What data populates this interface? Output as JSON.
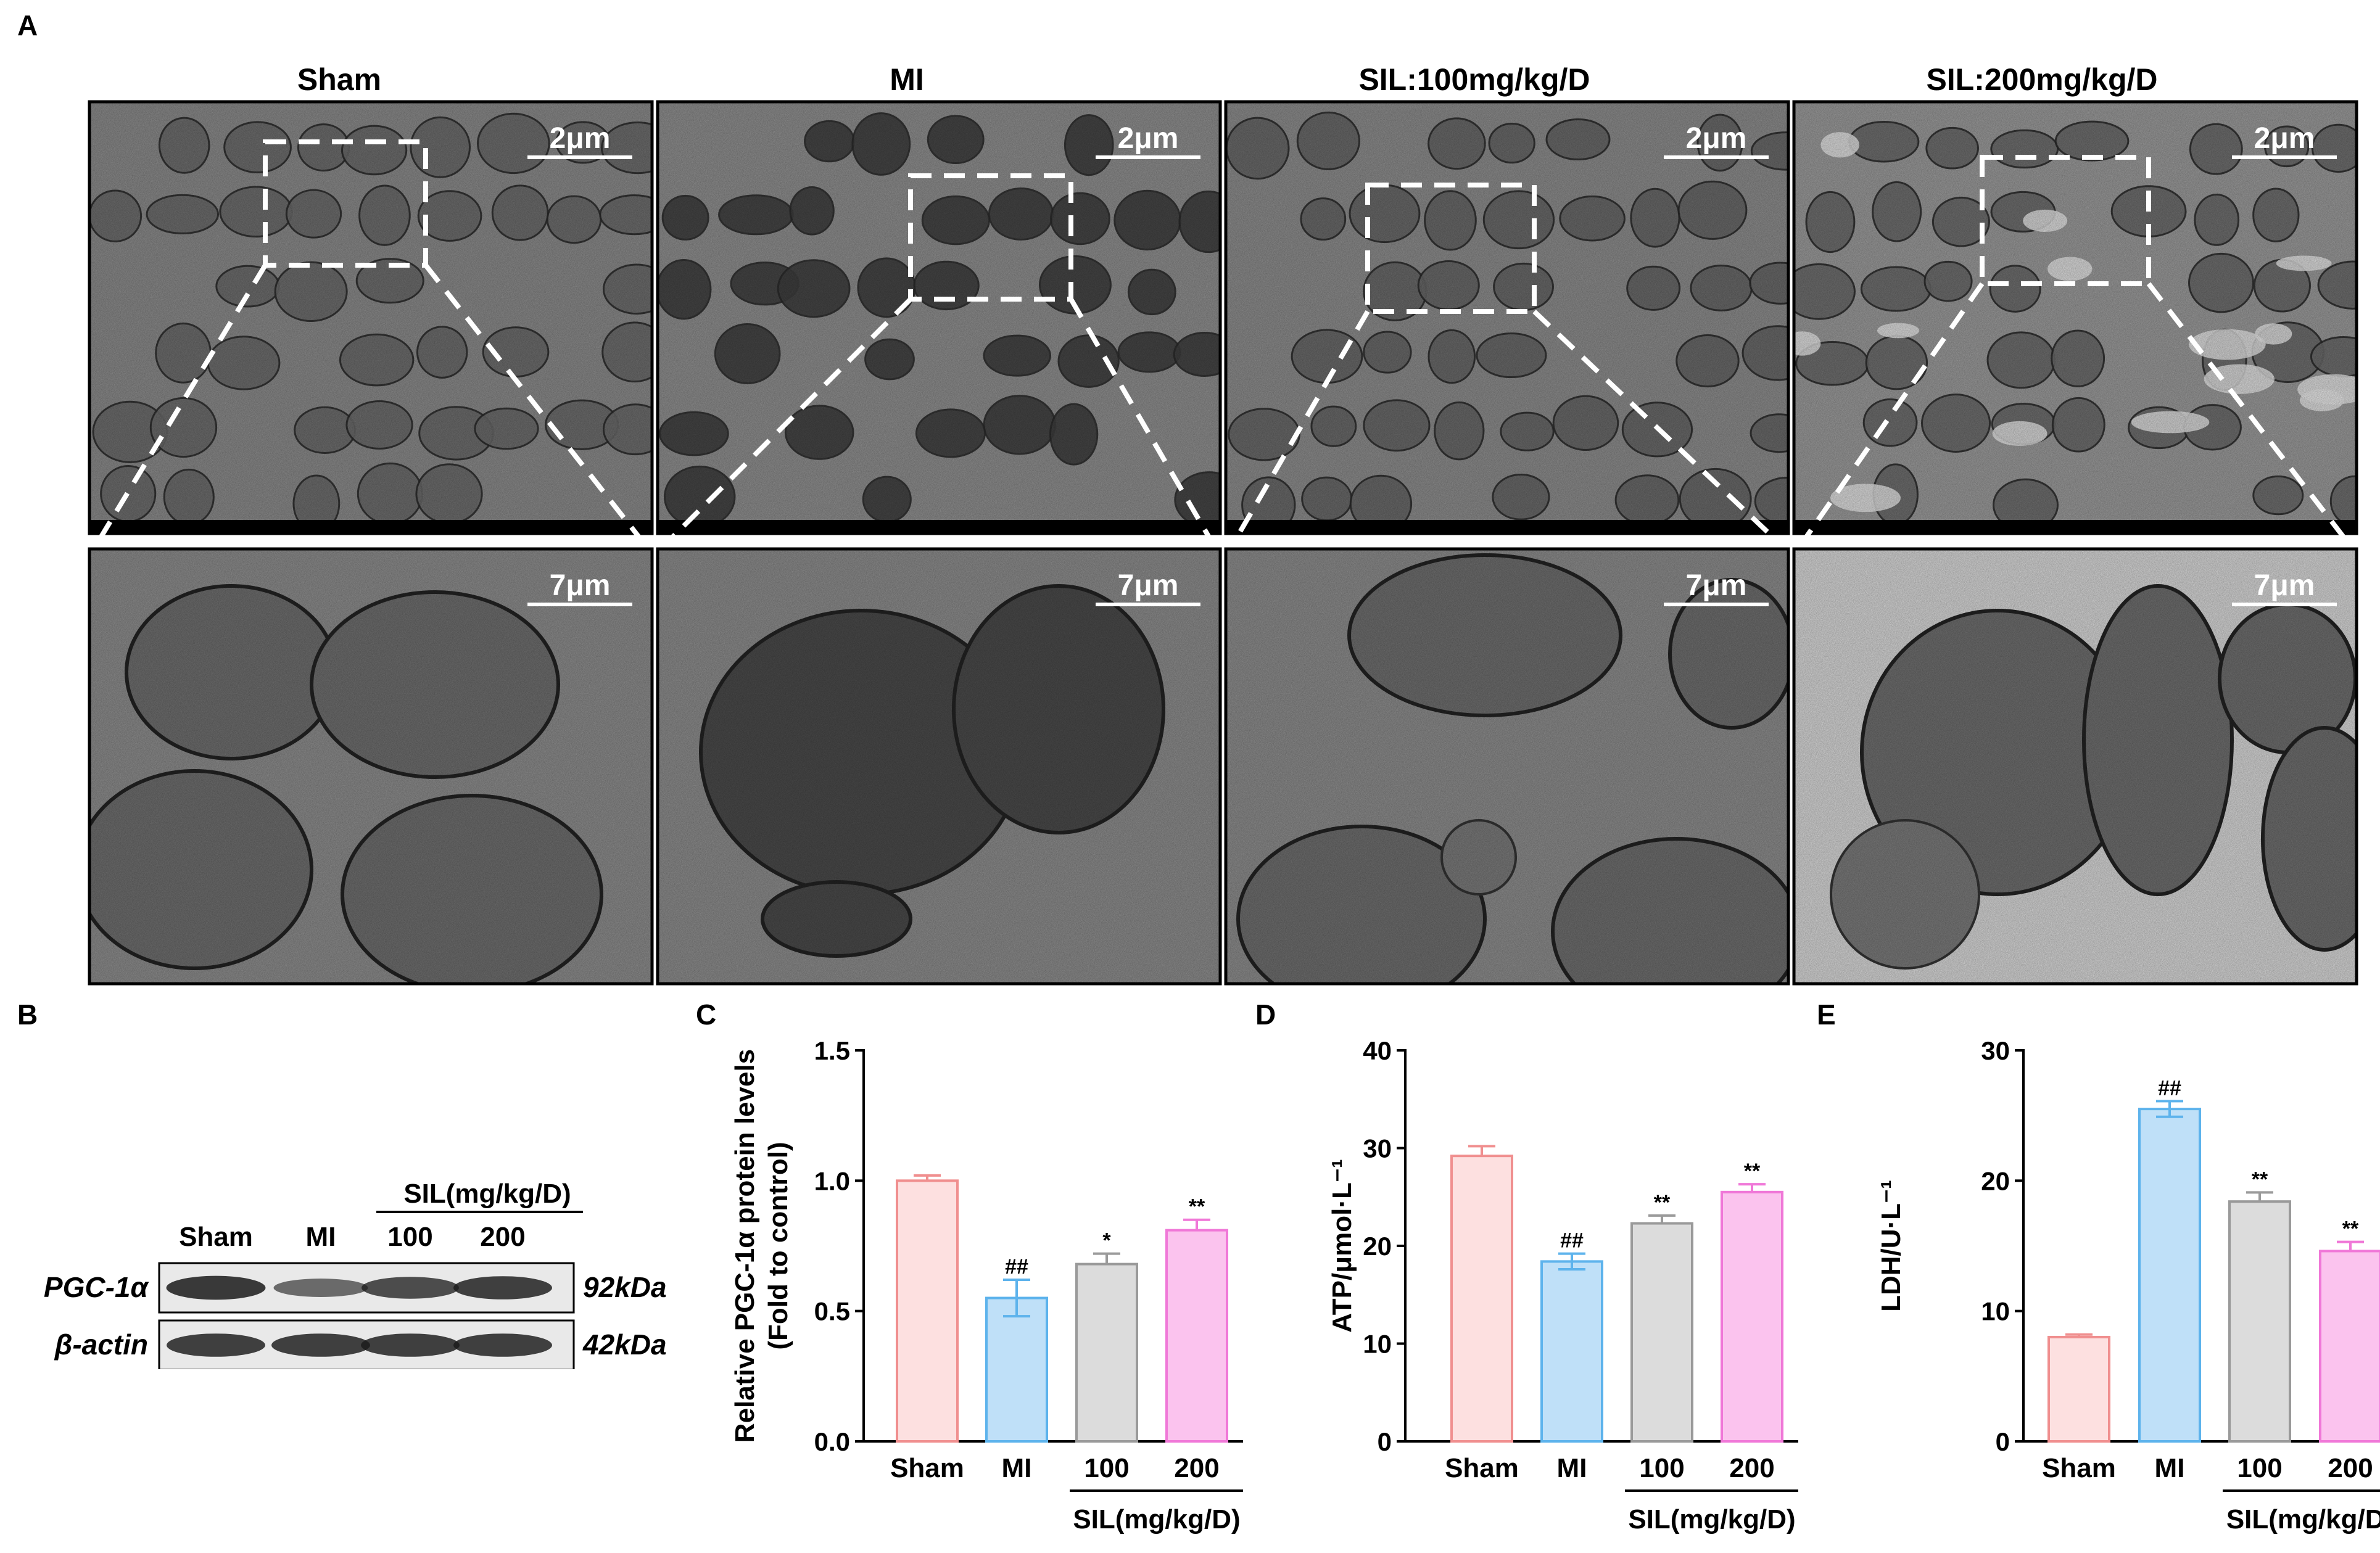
{
  "panels": {
    "a": "A",
    "b": "B",
    "c": "C",
    "d": "D",
    "e": "E"
  },
  "tem": {
    "columns": [
      "Sham",
      "MI",
      "SIL:100mg/kg/D",
      "SIL:200mg/kg/D"
    ],
    "scale_top": "2μm",
    "scale_bottom": "7μm"
  },
  "western_blot": {
    "sil_header": "SIL(mg/kg/D)",
    "lanes": [
      "Sham",
      "MI",
      "100",
      "200"
    ],
    "bands": [
      {
        "name": "PGC-1α",
        "weight": "92kDa",
        "intensity": [
          0.85,
          0.45,
          0.7,
          0.8
        ]
      },
      {
        "name": "β-actin",
        "weight": "42kDa",
        "intensity": [
          0.8,
          0.8,
          0.8,
          0.8
        ]
      }
    ]
  },
  "colors": {
    "sham_fill": "#fde0e0",
    "sham_edge": "#f08f8f",
    "mi_fill": "#bfe0f8",
    "mi_edge": "#5db3ec",
    "sil100_fill": "#dcdcdc",
    "sil100_edge": "#9a9a9a",
    "sil200_fill": "#fbc3ee",
    "sil200_edge": "#f078d8"
  },
  "chart_data": [
    {
      "panel": "C",
      "type": "bar",
      "categories": [
        "Sham",
        "MI",
        "100",
        "200"
      ],
      "group_label": "SIL(mg/kg/D)",
      "values": [
        1.0,
        0.55,
        0.68,
        0.81
      ],
      "errors": [
        0.02,
        0.07,
        0.04,
        0.04
      ],
      "annotations": [
        "",
        "##",
        "*",
        "**"
      ],
      "ylabel": [
        "Relative PGC-1α protein levels",
        "(Fold to control)"
      ],
      "ylim": [
        0,
        1.5
      ],
      "yticks": [
        0.0,
        0.5,
        1.0,
        1.5
      ],
      "ytick_labels": [
        "0.0",
        "0.5",
        "1.0",
        "1.5"
      ]
    },
    {
      "panel": "D",
      "type": "bar",
      "categories": [
        "Sham",
        "MI",
        "100",
        "200"
      ],
      "group_label": "SIL(mg/kg/D)",
      "values": [
        29.2,
        18.4,
        22.3,
        25.5
      ],
      "errors": [
        1.0,
        0.8,
        0.8,
        0.8
      ],
      "annotations": [
        "",
        "##",
        "**",
        "**"
      ],
      "ylabel": [
        "ATP/μmol·L⁻¹"
      ],
      "ylim": [
        0,
        40
      ],
      "yticks": [
        0,
        10,
        20,
        30,
        40
      ],
      "ytick_labels": [
        "0",
        "10",
        "20",
        "30",
        "40"
      ]
    },
    {
      "panel": "E",
      "type": "bar",
      "categories": [
        "Sham",
        "MI",
        "100",
        "200"
      ],
      "group_label": "SIL(mg/kg/D)",
      "values": [
        8.0,
        25.5,
        18.4,
        14.6
      ],
      "errors": [
        0.2,
        0.6,
        0.7,
        0.7
      ],
      "annotations": [
        "",
        "##",
        "**",
        "**"
      ],
      "ylabel": [
        "LDH/U·L⁻¹"
      ],
      "ylim": [
        0,
        30
      ],
      "yticks": [
        0,
        10,
        20,
        30
      ],
      "ytick_labels": [
        "0",
        "10",
        "20",
        "30"
      ]
    }
  ]
}
